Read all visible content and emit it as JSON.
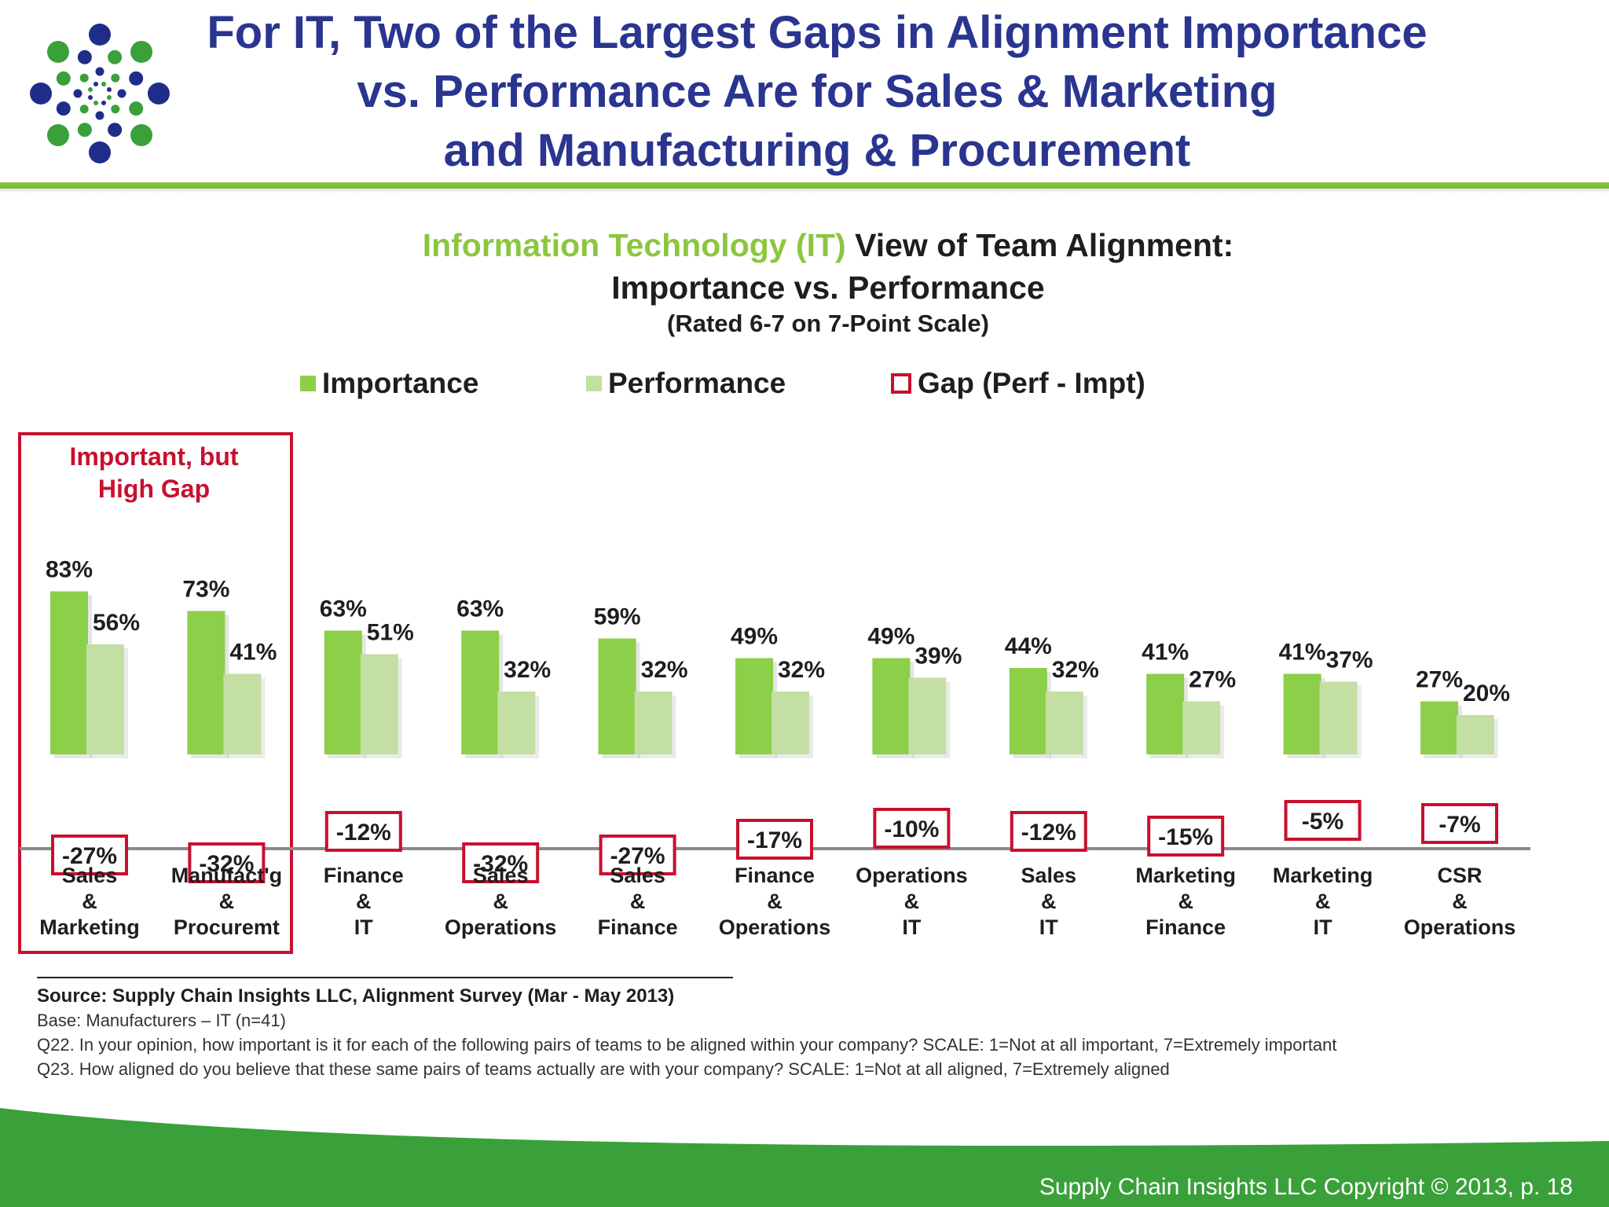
{
  "slide": {
    "title_lines": [
      "For IT, Two of the Largest Gaps in Alignment Importance",
      "vs. Performance Are for Sales & Marketing",
      "and Manufacturing & Procurement"
    ],
    "copyright": "Supply Chain Insights LLC Copyright © 2013, p. 18"
  },
  "colors": {
    "title": "#2a3590",
    "importance": "#8ccf48",
    "performance": "#c3dfa3",
    "gap_box": "#c8102e",
    "brand_green": "#3aa03a",
    "logo_blue": "#1f2d8a"
  },
  "logo": {
    "icon": "dot-burst-logo"
  },
  "chart_header": {
    "title_accent": "Information Technology (IT)",
    "title_rest": " View of Team Alignment:",
    "subtitle": "Importance vs. Performance",
    "note": "(Rated 6-7 on 7-Point Scale)"
  },
  "legend": {
    "importance": "Importance",
    "performance": "Performance",
    "gap": "Gap (Perf - Impt)"
  },
  "callout": {
    "text_lines": [
      "Important, but",
      "High Gap"
    ]
  },
  "chart_data": {
    "type": "bar",
    "categories": [
      [
        "Sales",
        "&",
        "Marketing"
      ],
      [
        "Manufact'g",
        "&",
        "Procuremt"
      ],
      [
        "Finance",
        "&",
        "IT"
      ],
      [
        "Sales",
        "&",
        "Operations"
      ],
      [
        "Sales",
        "&",
        "Finance"
      ],
      [
        "Finance",
        "&",
        "Operations"
      ],
      [
        "Operations",
        "&",
        "IT"
      ],
      [
        "Sales",
        "&",
        "IT"
      ],
      [
        "Marketing",
        "&",
        "Finance"
      ],
      [
        "Marketing",
        "&",
        "IT"
      ],
      [
        "CSR",
        "&",
        "Operations"
      ]
    ],
    "series": [
      {
        "name": "Importance",
        "values": [
          83,
          73,
          63,
          63,
          59,
          49,
          49,
          44,
          41,
          41,
          27
        ]
      },
      {
        "name": "Performance",
        "values": [
          56,
          41,
          51,
          32,
          32,
          32,
          39,
          32,
          27,
          37,
          20
        ]
      }
    ],
    "gap": {
      "name": "Gap (Perf - Impt)",
      "values": [
        -27,
        -32,
        -12,
        -32,
        -27,
        -17,
        -10,
        -12,
        -15,
        -5,
        -7
      ]
    },
    "value_labels": {
      "importance": [
        "83%",
        "73%",
        "63%",
        "63%",
        "59%",
        "49%",
        "49%",
        "44%",
        "41%",
        "41%",
        "27%"
      ],
      "performance": [
        "56%",
        "41%",
        "51%",
        "32%",
        "32%",
        "32%",
        "39%",
        "32%",
        "27%",
        "37%",
        "20%"
      ],
      "gap": [
        "-27%",
        "-32%",
        "-12%",
        "-32%",
        "-27%",
        "-17%",
        "-10%",
        "-12%",
        "-15%",
        "-5%",
        "-7%"
      ]
    },
    "ylim": [
      0,
      100
    ],
    "unit": "%",
    "highlighted_categories": [
      0,
      1
    ]
  },
  "footnotes": {
    "source": "Source:  Supply Chain Insights LLC, Alignment Survey  (Mar - May 2013)",
    "base": "Base:  Manufacturers   – IT (n=41)",
    "q22": "Q22. In your opinion, how important is it for each of the following pairs of teams to be aligned within your company?  SCALE:  1=Not at all important, 7=Extremely important",
    "q23": "Q23. How aligned do you believe that these same pairs of teams actually are with your company?  SCALE: 1=Not at all aligned, 7=Extremely aligned"
  }
}
